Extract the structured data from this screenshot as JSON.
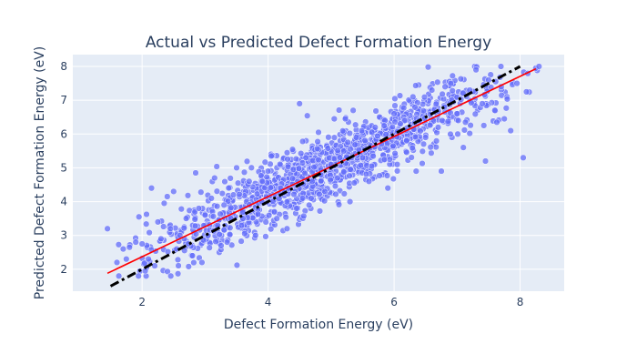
{
  "chart_data": {
    "type": "scatter",
    "title": "Actual vs Predicted Defect Formation Energy",
    "xlabel": "Defect Formation Energy (eV)",
    "ylabel": "Predicted Defect Formation Energy (eV)",
    "xlim": [
      0.9,
      8.7
    ],
    "ylim": [
      1.35,
      8.35
    ],
    "xticks": [
      2,
      4,
      6,
      8
    ],
    "yticks": [
      2,
      3,
      4,
      5,
      6,
      7,
      8
    ],
    "grid": true,
    "legend": "none",
    "colors": {
      "plot_bg": "#E5ECF6",
      "grid": "#ffffff",
      "points": "#636EFA",
      "fit_line": "#FF0000",
      "identity_line": "#000000",
      "text": "#2a3f5f"
    },
    "fit_line": {
      "x": [
        1.45,
        8.25
      ],
      "y": [
        1.88,
        7.93
      ]
    },
    "identity_line": {
      "x": [
        1.5,
        8.0
      ],
      "y": [
        1.5,
        8.0
      ]
    },
    "sample_points": [
      [
        1.45,
        3.2
      ],
      [
        1.6,
        2.2
      ],
      [
        1.7,
        2.6
      ],
      [
        1.75,
        2.3
      ],
      [
        1.8,
        2.65
      ],
      [
        1.9,
        2.8
      ],
      [
        1.95,
        3.55
      ],
      [
        2.0,
        2.75
      ],
      [
        2.05,
        1.95
      ],
      [
        2.1,
        2.3
      ],
      [
        2.15,
        4.4
      ],
      [
        2.2,
        2.1
      ],
      [
        2.25,
        3.4
      ],
      [
        2.3,
        2.9
      ],
      [
        2.35,
        3.95
      ],
      [
        2.4,
        4.15
      ],
      [
        2.45,
        3.2
      ],
      [
        2.5,
        4.3
      ],
      [
        2.55,
        2.6
      ],
      [
        2.6,
        3.0
      ],
      [
        2.7,
        3.5
      ],
      [
        2.8,
        2.4
      ],
      [
        2.85,
        4.85
      ],
      [
        2.9,
        3.8
      ],
      [
        2.95,
        2.2
      ],
      [
        3.0,
        3.6
      ],
      [
        3.1,
        4.1
      ],
      [
        3.15,
        4.7
      ],
      [
        3.2,
        3.3
      ],
      [
        3.3,
        3.9
      ],
      [
        3.35,
        2.8
      ],
      [
        3.45,
        4.2
      ],
      [
        3.5,
        5.0
      ],
      [
        3.6,
        3.5
      ],
      [
        3.7,
        4.6
      ],
      [
        3.8,
        3.0
      ],
      [
        3.9,
        4.0
      ],
      [
        4.0,
        4.9
      ],
      [
        4.05,
        5.35
      ],
      [
        4.1,
        3.7
      ],
      [
        4.2,
        4.4
      ],
      [
        4.3,
        3.2
      ],
      [
        4.4,
        4.95
      ],
      [
        4.5,
        6.9
      ],
      [
        4.55,
        4.1
      ],
      [
        4.6,
        5.3
      ],
      [
        4.7,
        4.6
      ],
      [
        4.8,
        6.05
      ],
      [
        4.9,
        4.3
      ],
      [
        5.0,
        5.1
      ],
      [
        5.05,
        6.45
      ],
      [
        5.1,
        4.7
      ],
      [
        5.2,
        5.5
      ],
      [
        5.3,
        4.0
      ],
      [
        5.35,
        6.7
      ],
      [
        5.4,
        5.9
      ],
      [
        5.5,
        5.3
      ],
      [
        5.6,
        4.6
      ],
      [
        5.7,
        6.2
      ],
      [
        5.8,
        5.7
      ],
      [
        5.9,
        4.4
      ],
      [
        6.0,
        6.6
      ],
      [
        6.05,
        5.1
      ],
      [
        6.1,
        6.3
      ],
      [
        6.2,
        5.8
      ],
      [
        6.3,
        7.1
      ],
      [
        6.35,
        4.9
      ],
      [
        6.4,
        6.4
      ],
      [
        6.5,
        5.9
      ],
      [
        6.6,
        7.3
      ],
      [
        6.7,
        6.2
      ],
      [
        6.75,
        4.9
      ],
      [
        6.8,
        6.8
      ],
      [
        6.9,
        7.5
      ],
      [
        7.0,
        6.6
      ],
      [
        7.1,
        5.6
      ],
      [
        7.2,
        7.3
      ],
      [
        7.3,
        7.9
      ],
      [
        7.4,
        6.9
      ],
      [
        7.5,
        7.6
      ],
      [
        7.45,
        5.2
      ],
      [
        7.6,
        6.7
      ],
      [
        7.7,
        7.4
      ],
      [
        7.75,
        6.45
      ],
      [
        7.85,
        6.1
      ],
      [
        7.95,
        7.5
      ],
      [
        8.05,
        5.3
      ],
      [
        8.1,
        7.25
      ],
      [
        8.25,
        7.95
      ],
      [
        8.3,
        8.0
      ]
    ],
    "cloud": {
      "count": 1200,
      "slope": 0.89,
      "intercept": 0.6,
      "spread": 0.48,
      "x_min": 1.45,
      "x_max": 8.3
    }
  }
}
